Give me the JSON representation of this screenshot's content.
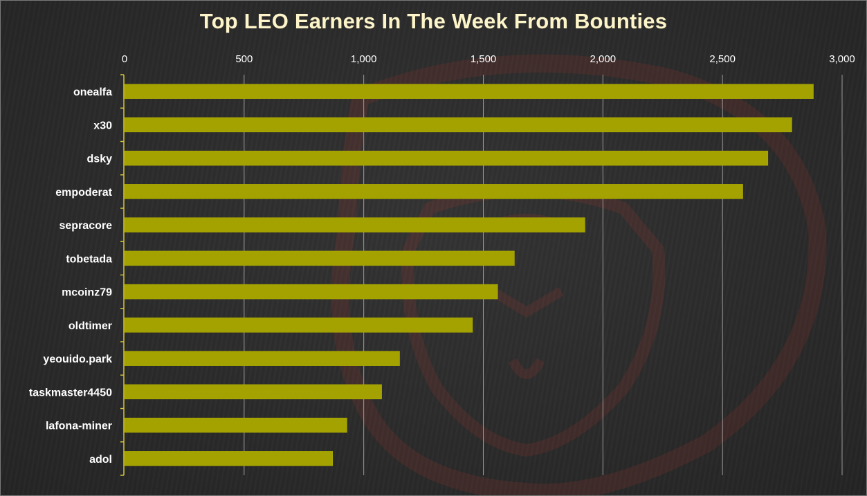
{
  "chart_data": {
    "type": "bar",
    "orientation": "horizontal",
    "title": "Top LEO Earners In The Week From Bounties",
    "xlabel": "",
    "ylabel": "",
    "xlim": [
      0,
      3000
    ],
    "ticks": [
      "0",
      "500",
      "1,000",
      "1,500",
      "2,000",
      "2,500",
      "3,000"
    ],
    "tick_values": [
      0,
      500,
      1000,
      1500,
      2000,
      2500,
      3000
    ],
    "x_axis_position": "top",
    "grid": true,
    "legend": "none",
    "categories": [
      "onealfa",
      "x30",
      "dsky",
      "empoderat",
      "sepracore",
      "tobetada",
      "mcoinz79",
      "oldtimer",
      "yeouido.park",
      "taskmaster4450",
      "lafona-miner",
      "adol"
    ],
    "values": [
      2880,
      2790,
      2690,
      2585,
      1925,
      1630,
      1560,
      1455,
      1150,
      1075,
      930,
      870
    ]
  },
  "colors": {
    "bar": "#a3a200",
    "bar_edge": "#b6b400",
    "grid": "#bfbfbf",
    "axis": "#d4c43a",
    "title": "#fdf5c9",
    "text": "#ffffff",
    "background": "#2b2b2b",
    "watermark": "#8a2a22"
  }
}
